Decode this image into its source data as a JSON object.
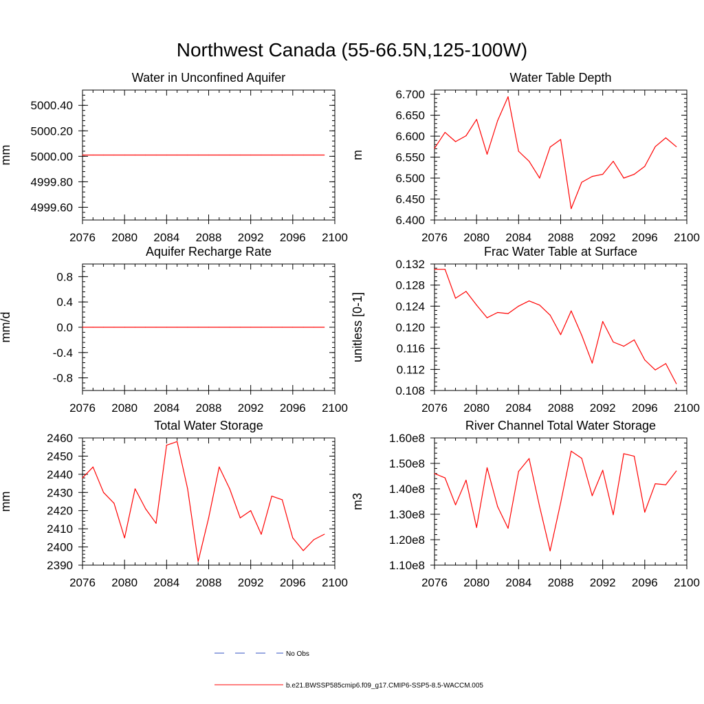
{
  "figure": {
    "title": "Northwest Canada (55-66.5N,125-100W)"
  },
  "legend": {
    "entries": [
      {
        "label": "No Obs",
        "color": "#3050c0",
        "dash": true
      },
      {
        "label": "b.e21.BWSSP585cmip6.f09_g17.CMIP6-SSP5-8.5-WACCM.005",
        "color": "#ff0000",
        "dash": false
      }
    ]
  },
  "chart_data": [
    {
      "id": "wa",
      "type": "line",
      "title": "Water in Unconfined Aquifer",
      "ylabel": "mm",
      "xlim": [
        2076,
        2100
      ],
      "ylim": [
        4999.5,
        5000.52
      ],
      "xticks": [
        2076,
        2080,
        2084,
        2088,
        2092,
        2096,
        2100
      ],
      "yticks": [
        4999.6,
        4999.8,
        5000.0,
        5000.2,
        5000.4
      ],
      "ytick_labels": [
        "4999.60",
        "4999.80",
        "5000.00",
        "5000.20",
        "5000.40"
      ],
      "series": [
        {
          "color": "#ff0000",
          "x": [
            2076,
            2077,
            2078,
            2079,
            2080,
            2081,
            2082,
            2083,
            2084,
            2085,
            2086,
            2087,
            2088,
            2089,
            2090,
            2091,
            2092,
            2093,
            2094,
            2095,
            2096,
            2097,
            2098,
            2099
          ],
          "y": [
            5000.01,
            5000.01,
            5000.01,
            5000.01,
            5000.01,
            5000.01,
            5000.01,
            5000.01,
            5000.01,
            5000.01,
            5000.01,
            5000.01,
            5000.01,
            5000.01,
            5000.01,
            5000.01,
            5000.01,
            5000.01,
            5000.01,
            5000.01,
            5000.01,
            5000.01,
            5000.01,
            5000.01
          ]
        }
      ]
    },
    {
      "id": "wtd",
      "type": "line",
      "title": "Water Table Depth",
      "ylabel": "m",
      "xlim": [
        2076,
        2100
      ],
      "ylim": [
        6.4,
        6.71
      ],
      "xticks": [
        2076,
        2080,
        2084,
        2088,
        2092,
        2096,
        2100
      ],
      "yticks": [
        6.4,
        6.45,
        6.5,
        6.55,
        6.6,
        6.65,
        6.7
      ],
      "ytick_labels": [
        "6.400",
        "6.450",
        "6.500",
        "6.550",
        "6.600",
        "6.650",
        "6.700"
      ],
      "series": [
        {
          "color": "#ff0000",
          "x": [
            2076,
            2077,
            2078,
            2079,
            2080,
            2081,
            2082,
            2083,
            2084,
            2085,
            2086,
            2087,
            2088,
            2089,
            2090,
            2091,
            2092,
            2093,
            2094,
            2095,
            2096,
            2097,
            2098,
            2099
          ],
          "y": [
            6.571,
            6.609,
            6.587,
            6.601,
            6.64,
            6.557,
            6.637,
            6.694,
            6.564,
            6.54,
            6.5,
            6.574,
            6.592,
            6.427,
            6.49,
            6.504,
            6.509,
            6.54,
            6.5,
            6.509,
            6.528,
            6.575,
            6.596,
            6.575
          ]
        }
      ]
    },
    {
      "id": "arr",
      "type": "line",
      "title": "Aquifer Recharge Rate",
      "ylabel": "mm/d",
      "xlim": [
        2076,
        2100
      ],
      "ylim": [
        -1.0,
        1.0
      ],
      "xticks": [
        2076,
        2080,
        2084,
        2088,
        2092,
        2096,
        2100
      ],
      "yticks": [
        -0.8,
        -0.4,
        0.0,
        0.4,
        0.8
      ],
      "ytick_labels": [
        "-0.8",
        "-0.4",
        "0.0",
        "0.4",
        "0.8"
      ],
      "series": [
        {
          "color": "#ff0000",
          "x": [
            2076,
            2077,
            2078,
            2079,
            2080,
            2081,
            2082,
            2083,
            2084,
            2085,
            2086,
            2087,
            2088,
            2089,
            2090,
            2091,
            2092,
            2093,
            2094,
            2095,
            2096,
            2097,
            2098,
            2099
          ],
          "y": [
            0,
            0,
            0,
            0,
            0,
            0,
            0,
            0,
            0,
            0,
            0,
            0,
            0,
            0,
            0,
            0,
            0,
            0,
            0,
            0,
            0,
            0,
            0,
            0
          ]
        }
      ]
    },
    {
      "id": "fwt",
      "type": "line",
      "title": "Frac Water Table at Surface",
      "ylabel": "unitless [0-1]",
      "xlim": [
        2076,
        2100
      ],
      "ylim": [
        0.108,
        0.132
      ],
      "xticks": [
        2076,
        2080,
        2084,
        2088,
        2092,
        2096,
        2100
      ],
      "yticks": [
        0.108,
        0.112,
        0.116,
        0.12,
        0.124,
        0.128,
        0.132
      ],
      "ytick_labels": [
        "0.108",
        "0.112",
        "0.116",
        "0.120",
        "0.124",
        "0.128",
        "0.132"
      ],
      "series": [
        {
          "color": "#ff0000",
          "x": [
            2076,
            2077,
            2078,
            2079,
            2080,
            2081,
            2082,
            2083,
            2084,
            2085,
            2086,
            2087,
            2088,
            2089,
            2090,
            2091,
            2092,
            2093,
            2094,
            2095,
            2096,
            2097,
            2098,
            2099
          ],
          "y": [
            0.131,
            0.131,
            0.1255,
            0.1268,
            0.1242,
            0.1218,
            0.1228,
            0.1226,
            0.124,
            0.125,
            0.1242,
            0.1223,
            0.1186,
            0.1231,
            0.1185,
            0.1132,
            0.1211,
            0.1172,
            0.1164,
            0.1176,
            0.1138,
            0.1119,
            0.1131,
            0.1093
          ]
        }
      ]
    },
    {
      "id": "tws",
      "type": "line",
      "title": "Total Water Storage",
      "ylabel": "mm",
      "xlim": [
        2076,
        2100
      ],
      "ylim": [
        2390,
        2460
      ],
      "xticks": [
        2076,
        2080,
        2084,
        2088,
        2092,
        2096,
        2100
      ],
      "yticks": [
        2390,
        2400,
        2410,
        2420,
        2430,
        2440,
        2450,
        2460
      ],
      "ytick_labels": [
        "2390",
        "2400",
        "2410",
        "2420",
        "2430",
        "2440",
        "2450",
        "2460"
      ],
      "series": [
        {
          "color": "#ff0000",
          "x": [
            2076,
            2077,
            2078,
            2079,
            2080,
            2081,
            2082,
            2083,
            2084,
            2085,
            2086,
            2087,
            2088,
            2089,
            2090,
            2091,
            2092,
            2093,
            2094,
            2095,
            2096,
            2097,
            2098,
            2099
          ],
          "y": [
            2438,
            2444,
            2430,
            2424,
            2405,
            2432,
            2421,
            2413,
            2456,
            2458,
            2432,
            2392,
            2416,
            2444,
            2432,
            2416,
            2420,
            2407,
            2428,
            2426,
            2405,
            2398,
            2404,
            2407
          ]
        }
      ]
    },
    {
      "id": "rcs",
      "type": "line",
      "title": "River Channel Total Water Storage",
      "ylabel": "m3",
      "xlim": [
        2076,
        2100
      ],
      "ylim": [
        110000000,
        160000000
      ],
      "xticks": [
        2076,
        2080,
        2084,
        2088,
        2092,
        2096,
        2100
      ],
      "yticks": [
        110000000,
        120000000,
        130000000,
        140000000,
        150000000,
        160000000
      ],
      "ytick_labels": [
        "1.10e8",
        "1.20e8",
        "1.30e8",
        "1.40e8",
        "1.50e8",
        "1.60e8"
      ],
      "series": [
        {
          "color": "#ff0000",
          "x": [
            2076,
            2077,
            2078,
            2079,
            2080,
            2081,
            2082,
            2083,
            2084,
            2085,
            2086,
            2087,
            2088,
            2089,
            2090,
            2091,
            2092,
            2093,
            2094,
            2095,
            2096,
            2097,
            2098,
            2099
          ],
          "y": [
            146000000,
            144300000,
            133700000,
            143400000,
            124800000,
            148300000,
            133000000,
            124500000,
            146800000,
            151900000,
            133000000,
            115600000,
            134500000,
            154800000,
            152000000,
            137300000,
            147300000,
            129800000,
            153800000,
            152800000,
            130800000,
            142000000,
            141600000,
            147000000
          ]
        }
      ]
    }
  ]
}
